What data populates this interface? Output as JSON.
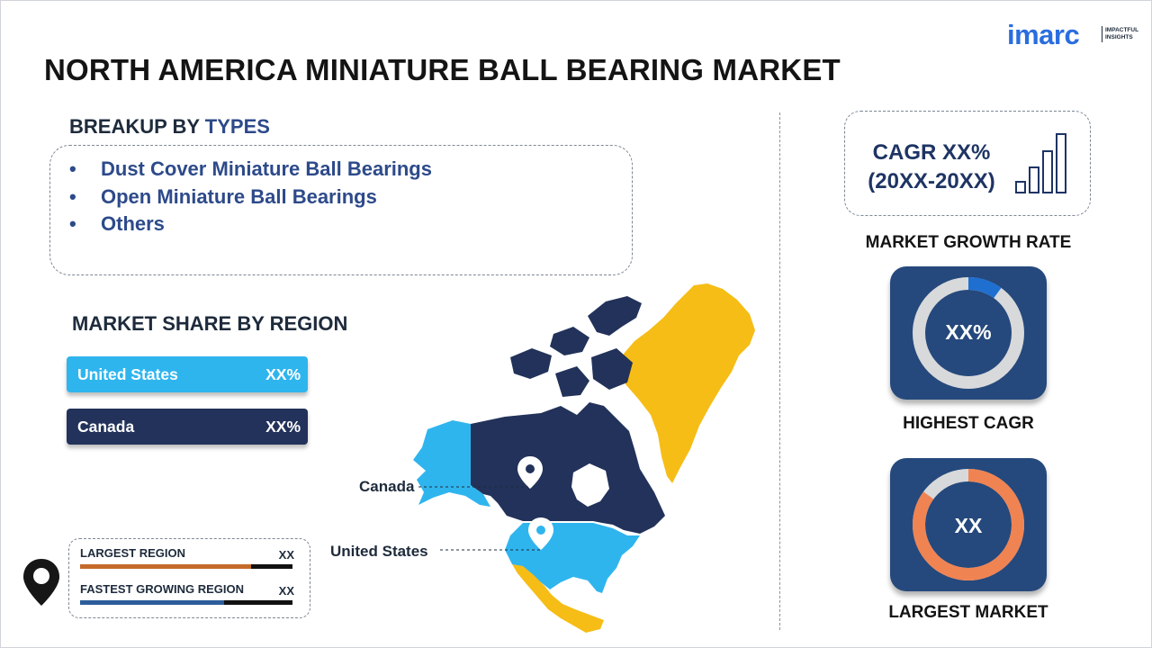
{
  "brand": {
    "name": "imarc",
    "tagline_line1": "IMPACTFUL",
    "tagline_line2": "INSIGHTS",
    "colors": {
      "primary": "#2a6de0",
      "navy": "#22325a",
      "sky": "#2fb5ee",
      "orange": "#f08352",
      "gold": "#f6bd16"
    }
  },
  "title": "NORTH AMERICA MINIATURE BALL BEARING MARKET",
  "types": {
    "heading_prefix": "BREAKUP BY",
    "heading_accent": "TYPES",
    "items": [
      "Dust Cover Miniature Ball Bearings",
      "Open Miniature Ball Bearings",
      "Others"
    ],
    "bullet": "•"
  },
  "regions": {
    "heading": "MARKET SHARE BY REGION",
    "items": [
      {
        "label": "United States",
        "value": "XX%"
      },
      {
        "label": "Canada",
        "value": "XX%"
      }
    ]
  },
  "legend": {
    "largest_label": "LARGEST REGION",
    "largest_value": "XX",
    "fastest_label": "FASTEST GROWING REGION",
    "fastest_value": "XX",
    "icon": "location-pin-icon"
  },
  "map": {
    "callouts": {
      "canada": "Canada",
      "united_states": "United States"
    }
  },
  "cagr": {
    "line1": "CAGR XX%",
    "line2": "(20XX-20XX)",
    "label": "MARKET GROWTH RATE",
    "icon": "growth-bars-icon"
  },
  "highest_cagr": {
    "value": "XX%",
    "label": "HIGHEST CAGR",
    "share": 0.1
  },
  "largest_market": {
    "value": "XX",
    "label": "LARGEST MARKET",
    "share": 0.85
  }
}
